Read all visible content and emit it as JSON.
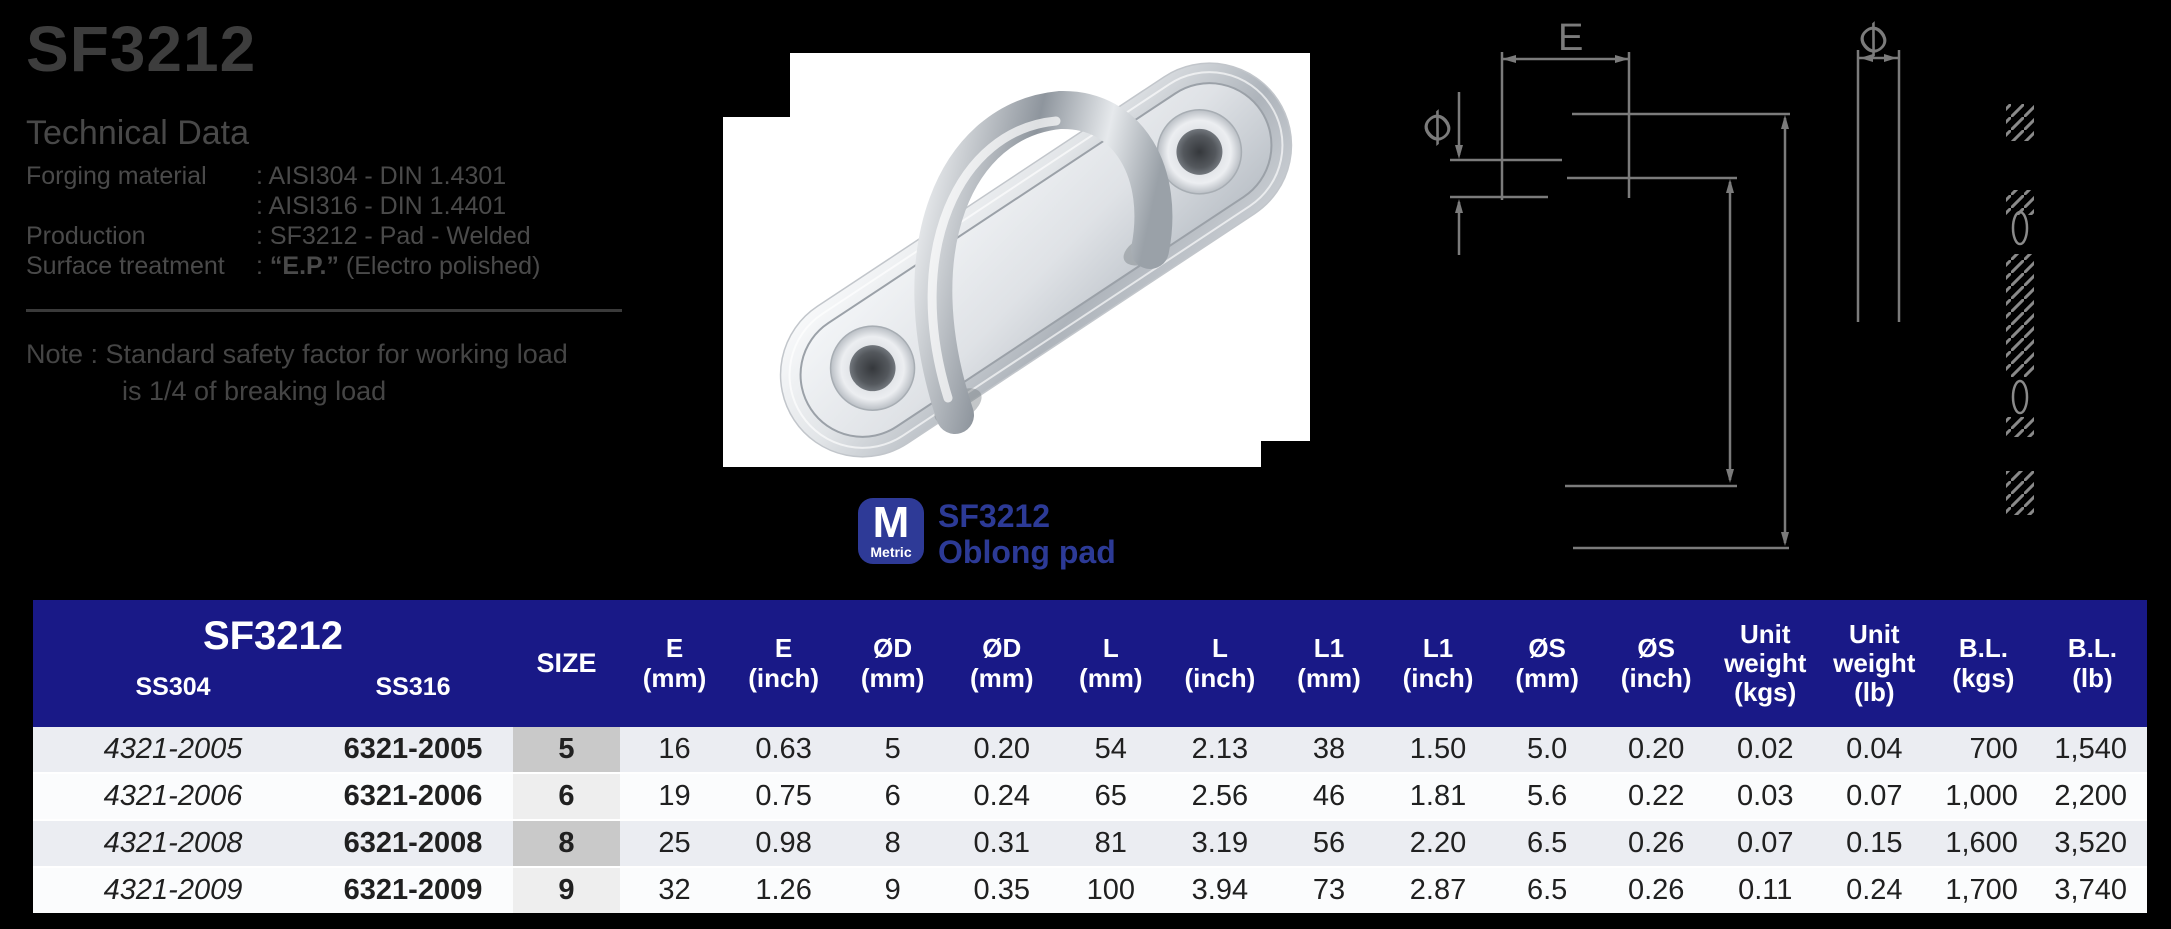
{
  "page": {
    "background": "#000000"
  },
  "colors": {
    "header_blue": "#191987",
    "brand_blue": "#2e3a97",
    "brand_text_blue": "#2c3a96",
    "info_text_gray": "#4a4a4a",
    "drawing_gray": "#7b7b7b",
    "row_odd": "#ebedf2",
    "row_even": "#fbfcfd",
    "size_cell_odd": "#c9c9c9",
    "size_cell_even": "#eeeeee"
  },
  "technical_data": {
    "title": "SF3212",
    "section_title": "Technical Data",
    "spec_rows": [
      {
        "label": "Forging material",
        "prefix": ": ",
        "bold": "",
        "rest": "AISI304 - DIN 1.4301"
      },
      {
        "label": "",
        "prefix": ": ",
        "bold": "",
        "rest": "AISI316 - DIN 1.4401"
      },
      {
        "label": "Production",
        "prefix": ": ",
        "bold": "",
        "rest": "SF3212 - Pad - Welded"
      },
      {
        "label": "Surface treatment",
        "prefix": ": ",
        "bold": "“E.P.”",
        "rest": " (Electro polished)"
      }
    ],
    "note_line1": "Note : Standard safety factor for working load",
    "note_line2": "is 1/4 of breaking load"
  },
  "brand": {
    "badge_letter": "M",
    "badge_label": "Metric",
    "product_code": "SF3212",
    "product_name": "Oblong pad"
  },
  "drawing": {
    "label_e": "E",
    "label_d": "Ø",
    "label_s": "Ø"
  },
  "table": {
    "group_header": "SF3212",
    "sub_header_left": "SS304",
    "sub_header_right": "SS316",
    "size_header": "SIZE",
    "columns": [
      {
        "label": "E",
        "unit": "(mm)"
      },
      {
        "label": "E",
        "unit": "(inch)"
      },
      {
        "label": "ØD",
        "unit": "(mm)"
      },
      {
        "label": "ØD",
        "unit": "(mm)"
      },
      {
        "label": "L",
        "unit": "(mm)"
      },
      {
        "label": "L",
        "unit": "(inch)"
      },
      {
        "label": "L1",
        "unit": "(mm)"
      },
      {
        "label": "L1",
        "unit": "(inch)"
      },
      {
        "label": "ØS",
        "unit": "(mm)"
      },
      {
        "label": "ØS",
        "unit": "(inch)"
      },
      {
        "label": "Unit weight",
        "unit": "(kgs)"
      },
      {
        "label": "Unit weight",
        "unit": "(lb)"
      },
      {
        "label": "B.L.",
        "unit": "(kgs)"
      },
      {
        "label": "B.L.",
        "unit": "(lb)"
      }
    ],
    "rows": [
      {
        "ss304": "4321-2005",
        "ss316": "6321-2005",
        "size": "5",
        "values": [
          "16",
          "0.63",
          "5",
          "0.20",
          "54",
          "2.13",
          "38",
          "1.50",
          "5.0",
          "0.20",
          "0.02",
          "0.04",
          "700",
          "1,540"
        ]
      },
      {
        "ss304": "4321-2006",
        "ss316": "6321-2006",
        "size": "6",
        "values": [
          "19",
          "0.75",
          "6",
          "0.24",
          "65",
          "2.56",
          "46",
          "1.81",
          "5.6",
          "0.22",
          "0.03",
          "0.07",
          "1,000",
          "2,200"
        ]
      },
      {
        "ss304": "4321-2008",
        "ss316": "6321-2008",
        "size": "8",
        "values": [
          "25",
          "0.98",
          "8",
          "0.31",
          "81",
          "3.19",
          "56",
          "2.20",
          "6.5",
          "0.26",
          "0.07",
          "0.15",
          "1,600",
          "3,520"
        ]
      },
      {
        "ss304": "4321-2009",
        "ss316": "6321-2009",
        "size": "9",
        "values": [
          "32",
          "1.26",
          "9",
          "0.35",
          "100",
          "3.94",
          "73",
          "2.87",
          "6.5",
          "0.26",
          "0.11",
          "0.24",
          "1,700",
          "3,740"
        ]
      }
    ]
  }
}
